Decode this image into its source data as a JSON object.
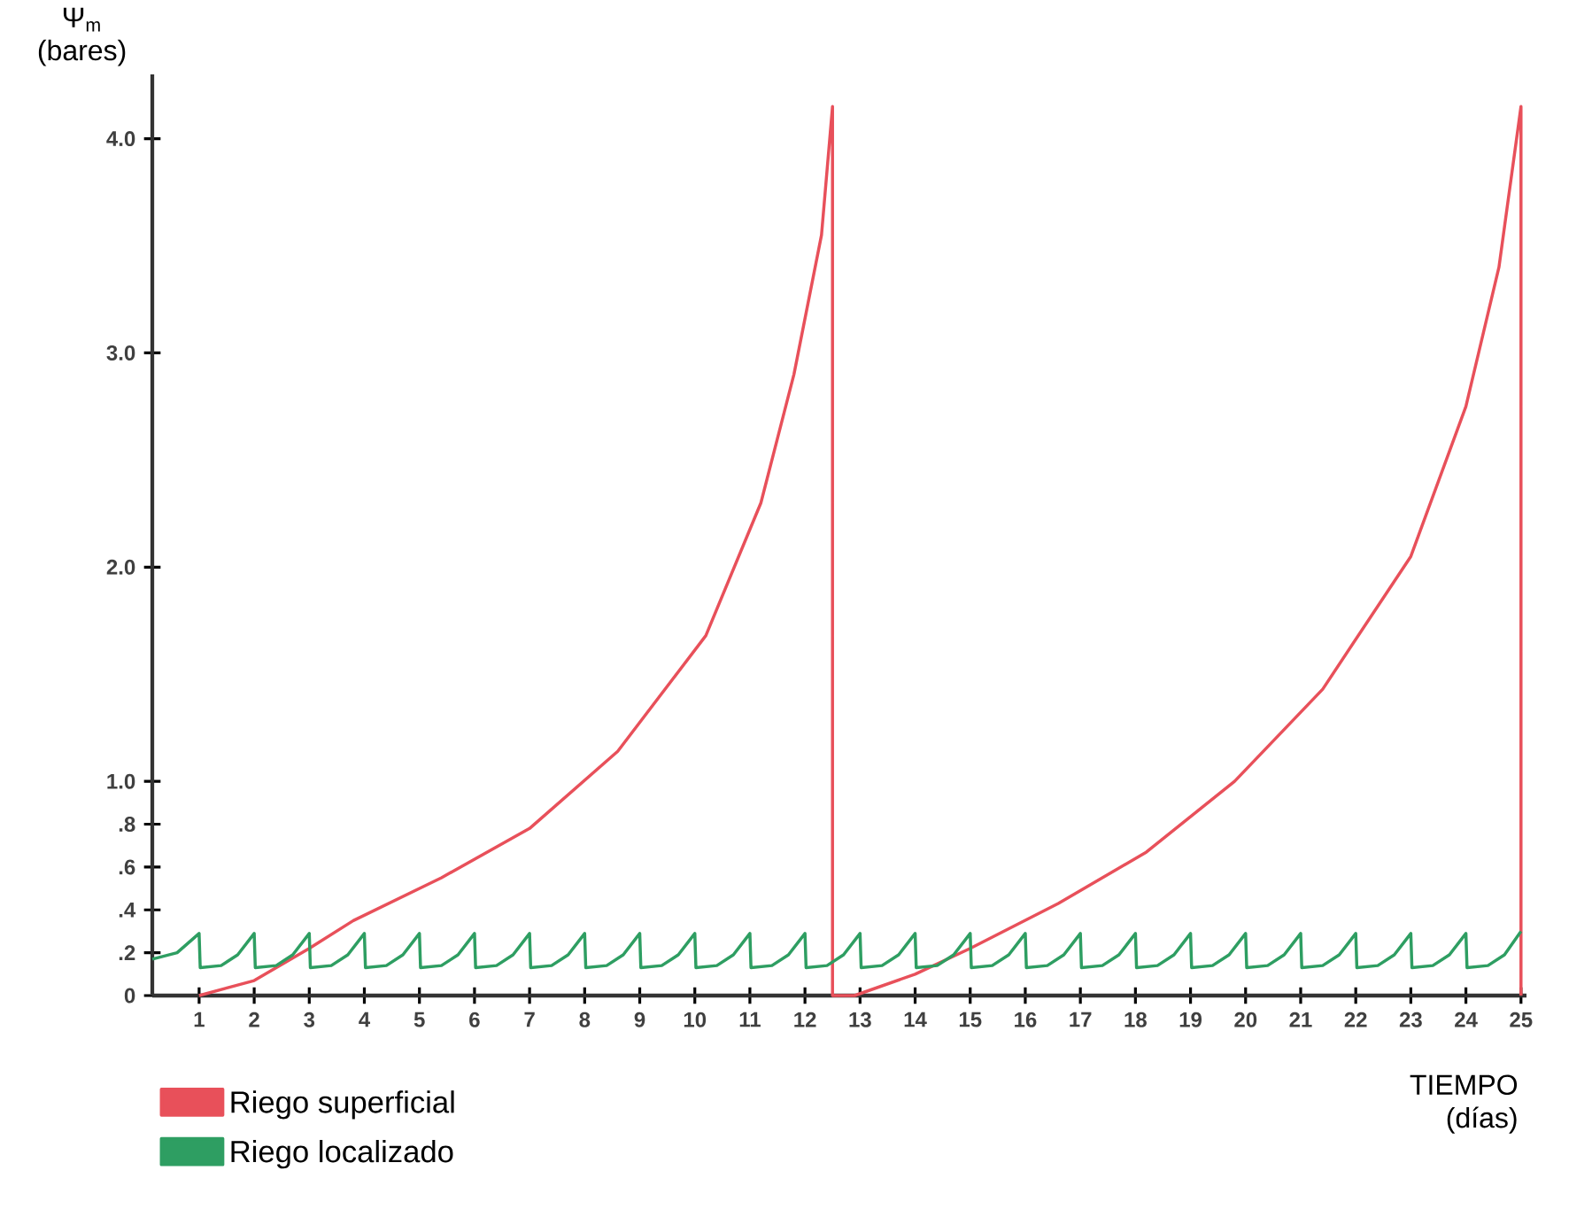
{
  "chart_data": {
    "type": "line",
    "ylabel": "Ψ$_{m}$ (bares)",
    "xlabel": "TIEMPO (días)",
    "xlim": [
      0.15,
      25.1
    ],
    "ylim": [
      0,
      4.3
    ],
    "xticks": [
      1,
      2,
      3,
      4,
      5,
      6,
      7,
      8,
      9,
      10,
      11,
      12,
      13,
      14,
      15,
      16,
      17,
      18,
      19,
      20,
      21,
      22,
      23,
      24,
      25
    ],
    "yticks": [
      0,
      {
        "value": 0.2,
        "label": ".2"
      },
      {
        "value": 0.4,
        "label": ".4"
      },
      {
        "value": 0.6,
        "label": ".6"
      },
      {
        "value": 0.8,
        "label": ".8"
      },
      {
        "value": 1,
        "label": "1.0"
      },
      {
        "value": 2,
        "label": "2.0"
      },
      {
        "value": 3,
        "label": "3.0"
      },
      {
        "value": 4,
        "label": "4.0"
      }
    ],
    "grid": false,
    "legend": "bottom left",
    "line_style": "solid",
    "marker": "none",
    "series": [
      {
        "name": "Riego superficial",
        "color": "#e8505a",
        "x": [
          1,
          2,
          3,
          3.8,
          5.4,
          7,
          8.6,
          10.2,
          11.2,
          11.8,
          12.3,
          12.5,
          12.5,
          12.9,
          14,
          15,
          16.6,
          18.2,
          19.8,
          21.4,
          23,
          24,
          24.6,
          25,
          25
        ],
        "values": [
          0,
          0.07,
          0.22,
          0.35,
          0.55,
          0.78,
          1.14,
          1.68,
          2.3,
          2.9,
          3.55,
          4.15,
          0,
          0,
          0.1,
          0.22,
          0.43,
          0.67,
          1.0,
          1.43,
          2.05,
          2.75,
          3.4,
          4.15,
          0
        ]
      },
      {
        "name": "Riego localizado",
        "color": "#2e9e62",
        "x": [
          0.15,
          0.6,
          1,
          1.02,
          1.4,
          1.7,
          2,
          2.02,
          2.4,
          2.7,
          3,
          3.02,
          3.4,
          3.7,
          4,
          4.02,
          4.4,
          4.7,
          5,
          5.02,
          5.4,
          5.7,
          6,
          6.02,
          6.4,
          6.7,
          7,
          7.02,
          7.4,
          7.7,
          8,
          8.02,
          8.4,
          8.7,
          9,
          9.02,
          9.4,
          9.7,
          10,
          10.02,
          10.4,
          10.7,
          11,
          11.02,
          11.4,
          11.7,
          12,
          12.02,
          12.4,
          12.7,
          13,
          13.02,
          13.4,
          13.7,
          14,
          14.02,
          14.4,
          14.7,
          15,
          15.02,
          15.4,
          15.7,
          16,
          16.02,
          16.4,
          16.7,
          17,
          17.02,
          17.4,
          17.7,
          18,
          18.02,
          18.4,
          18.7,
          19,
          19.02,
          19.4,
          19.7,
          20,
          20.02,
          20.4,
          20.7,
          21,
          21.02,
          21.4,
          21.7,
          22,
          22.02,
          22.4,
          22.7,
          23,
          23.02,
          23.4,
          23.7,
          24,
          24.02,
          24.4,
          24.7,
          25
        ],
        "values": [
          0.17,
          0.2,
          0.29,
          0.13,
          0.14,
          0.19,
          0.29,
          0.13,
          0.14,
          0.19,
          0.29,
          0.13,
          0.14,
          0.19,
          0.29,
          0.13,
          0.14,
          0.19,
          0.29,
          0.13,
          0.14,
          0.19,
          0.29,
          0.13,
          0.14,
          0.19,
          0.29,
          0.13,
          0.14,
          0.19,
          0.29,
          0.13,
          0.14,
          0.19,
          0.29,
          0.13,
          0.14,
          0.19,
          0.29,
          0.13,
          0.14,
          0.19,
          0.29,
          0.13,
          0.14,
          0.19,
          0.29,
          0.13,
          0.14,
          0.19,
          0.29,
          0.13,
          0.14,
          0.19,
          0.29,
          0.13,
          0.14,
          0.19,
          0.29,
          0.13,
          0.14,
          0.19,
          0.29,
          0.13,
          0.14,
          0.19,
          0.29,
          0.13,
          0.14,
          0.19,
          0.29,
          0.13,
          0.14,
          0.19,
          0.29,
          0.13,
          0.14,
          0.19,
          0.29,
          0.13,
          0.14,
          0.19,
          0.29,
          0.13,
          0.14,
          0.19,
          0.29,
          0.13,
          0.14,
          0.19,
          0.29,
          0.13,
          0.14,
          0.19,
          0.29,
          0.13,
          0.14,
          0.19,
          0.3
        ]
      }
    ]
  }
}
